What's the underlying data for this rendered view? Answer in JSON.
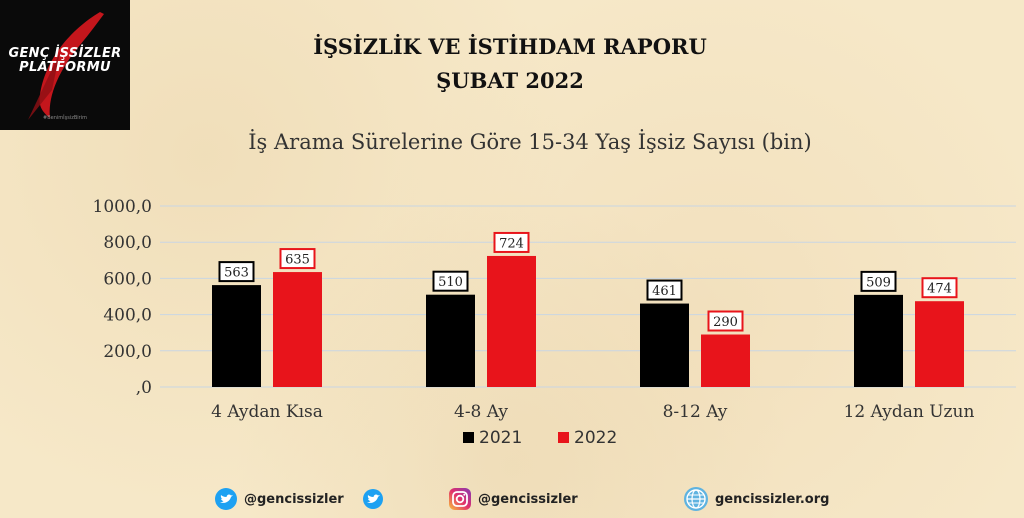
{
  "logo": {
    "line1": "GENÇ İŞSİZLER",
    "line2": "PLATFORMU",
    "tagline": "#BenimİşsizBirim"
  },
  "header": {
    "title": "İŞSİZLİK VE İSTİHDAM RAPORU",
    "date": "ŞUBAT 2022"
  },
  "chart_data": {
    "type": "bar",
    "title": "İş Arama Sürelerine Göre 15-34 Yaş İşsiz Sayısı (bin)",
    "categories": [
      "4 Aydan Kısa",
      "4-8 Ay",
      "8-12 Ay",
      "12 Aydan Uzun"
    ],
    "series": [
      {
        "name": "2021",
        "color": "#000000",
        "values": [
          563,
          510,
          461,
          509
        ]
      },
      {
        "name": "2022",
        "color": "#e8141b",
        "values": [
          635,
          724,
          290,
          474
        ]
      }
    ],
    "ylim": [
      0,
      1000
    ],
    "yticks": [
      {
        "value": 1000,
        "label": "1000,0"
      },
      {
        "value": 800,
        "label": "800,0"
      },
      {
        "value": 600,
        "label": "600,0"
      },
      {
        "value": 400,
        "label": "400,0"
      },
      {
        "value": 200,
        "label": "200,0"
      },
      {
        "value": 0,
        "label": ",0"
      }
    ],
    "grid": true,
    "legend": "bottom"
  },
  "footer": {
    "twitter": "@gencissizler",
    "instagram": "@gencissizler",
    "website": "gencissizler.org"
  },
  "colors": {
    "background": "#f6e8c8",
    "series_2021": "#000000",
    "series_2022": "#e8141b",
    "grid": "#c9d6e3"
  }
}
